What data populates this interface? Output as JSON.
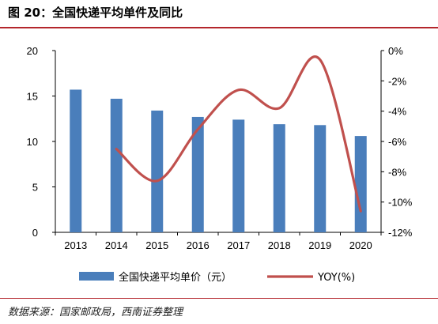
{
  "title": "图 20：全国快递平均单件及同比",
  "source": "数据来源：国家邮政局，西南证券整理",
  "chart_data": {
    "type": "bar",
    "categories": [
      "2013",
      "2014",
      "2015",
      "2016",
      "2017",
      "2018",
      "2019",
      "2020"
    ],
    "series": [
      {
        "name": "全国快递平均单价（元）",
        "type": "bar",
        "axis": "left",
        "color": "#4a7ebb",
        "values": [
          15.7,
          14.7,
          13.4,
          12.7,
          12.4,
          11.9,
          11.8,
          10.6
        ]
      },
      {
        "name": "YOY(%)",
        "type": "line",
        "axis": "right",
        "color": "#c0504d",
        "values": [
          null,
          -6.5,
          -8.6,
          -5.2,
          -2.6,
          -3.8,
          -0.6,
          -10.6
        ]
      }
    ],
    "ylim_left": [
      0,
      20
    ],
    "yticks_left": [
      "0",
      "5",
      "10",
      "15",
      "20"
    ],
    "ylim_right": [
      -12,
      0
    ],
    "yticks_right": [
      "-12%",
      "-10%",
      "-8%",
      "-6%",
      "-4%",
      "-2%",
      "0%"
    ],
    "grid": false,
    "legend_position": "bottom"
  }
}
